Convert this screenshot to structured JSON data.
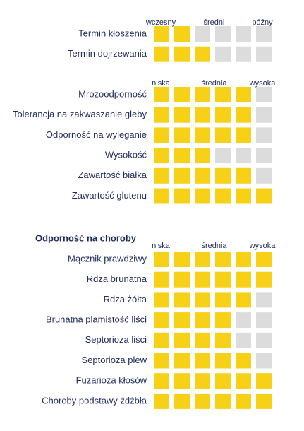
{
  "scale_max": 6,
  "sections": [
    {
      "scale": [
        "wczesny",
        "średni",
        "późny"
      ],
      "rows": [
        {
          "label": "Termin kłoszenia",
          "score": 2
        },
        {
          "label": "Termin dojrzewania",
          "score": 3
        }
      ]
    },
    {
      "scale": [
        "niska",
        "średnia",
        "wysoka"
      ],
      "rows": [
        {
          "label": "Mrozoodporność",
          "score": 5
        },
        {
          "label": "Tolerancja na zakwaszanie gleby",
          "score": 5
        },
        {
          "label": "Odporność na wyleganie",
          "score": 5
        },
        {
          "label": "Wysokość",
          "score": 3
        },
        {
          "label": "Zawartość białka",
          "score": 5
        },
        {
          "label": "Zawartość glutenu",
          "score": 6
        }
      ]
    },
    {
      "title": "Odporność na choroby",
      "scale": [
        "niska",
        "średnia",
        "wysoka"
      ],
      "rows": [
        {
          "label": "Mącznik prawdziwy",
          "score": 6
        },
        {
          "label": "Rdza brunatna",
          "score": 6
        },
        {
          "label": "Rdza żółta",
          "score": 5
        },
        {
          "label": "Brunatna plamistość liści",
          "score": 4
        },
        {
          "label": "Septorioza liści",
          "score": 4
        },
        {
          "label": "Septorioza plew",
          "score": 5
        },
        {
          "label": "Fuzarioza kłosów",
          "score": 6
        },
        {
          "label": "Choroby podstawy źdźbła",
          "score": 6
        }
      ]
    }
  ]
}
